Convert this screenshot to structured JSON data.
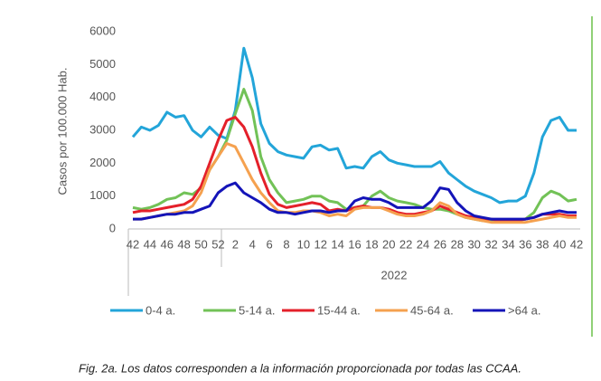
{
  "chart_data": {
    "type": "line",
    "y_label": "Casos por 100.000 Hab.",
    "x_group_label": "2022",
    "caption": "Fig. 2a. Los datos corresponden a la información proporcionada por todas las CCAA.",
    "categories": [
      "42",
      null,
      "44",
      null,
      "46",
      null,
      "48",
      null,
      "50",
      null,
      "52",
      null,
      "2",
      null,
      "4",
      null,
      "6",
      null,
      "8",
      null,
      "10",
      null,
      "12",
      null,
      "14",
      null,
      "16",
      null,
      "18",
      null,
      "20",
      null,
      "22",
      null,
      "24",
      null,
      "26",
      null,
      "28",
      null,
      "30",
      null,
      "32",
      null,
      "34",
      null,
      "36",
      null,
      "38",
      null,
      "40",
      null,
      "42"
    ],
    "ylim": [
      0,
      6000
    ],
    "yticks": [
      0,
      1000,
      2000,
      3000,
      4000,
      5000,
      6000
    ],
    "grid": false,
    "legend": "bottom",
    "series": [
      {
        "name": "0-4 a.",
        "color": "#23a5d9",
        "values": [
          2800,
          3100,
          3000,
          3150,
          3550,
          3400,
          3450,
          3000,
          2800,
          3100,
          2850,
          2750,
          3600,
          5500,
          4600,
          3200,
          2600,
          2350,
          2250,
          2200,
          2150,
          2500,
          2550,
          2400,
          2450,
          1850,
          1900,
          1850,
          2200,
          2350,
          2100,
          2000,
          1950,
          1900,
          1900,
          1900,
          2050,
          1700,
          1500,
          1300,
          1150,
          1050,
          950,
          800,
          850,
          850,
          1000,
          1700,
          2800,
          3300,
          3400,
          3000,
          3000
        ]
      },
      {
        "name": "5-14 a.",
        "color": "#72c257",
        "values": [
          650,
          600,
          650,
          750,
          900,
          950,
          1100,
          1050,
          1250,
          1800,
          2200,
          2700,
          3500,
          4250,
          3600,
          2200,
          1500,
          1100,
          800,
          850,
          900,
          1000,
          1000,
          850,
          800,
          600,
          650,
          700,
          1000,
          1150,
          950,
          850,
          800,
          750,
          650,
          600,
          600,
          550,
          450,
          350,
          300,
          250,
          250,
          250,
          250,
          250,
          300,
          500,
          950,
          1150,
          1050,
          850,
          900
        ]
      },
      {
        "name": "15-44 a.",
        "color": "#e4202a",
        "values": [
          500,
          550,
          550,
          600,
          650,
          700,
          750,
          900,
          1300,
          2000,
          2700,
          3300,
          3400,
          3100,
          2500,
          1700,
          1050,
          750,
          650,
          700,
          750,
          800,
          750,
          550,
          600,
          550,
          650,
          700,
          650,
          650,
          600,
          500,
          450,
          450,
          500,
          550,
          700,
          600,
          500,
          400,
          350,
          300,
          300,
          250,
          250,
          250,
          300,
          350,
          450,
          450,
          450,
          400,
          400
        ]
      },
      {
        "name": "45-64 a.",
        "color": "#f5a14f",
        "values": [
          300,
          300,
          350,
          400,
          450,
          500,
          550,
          700,
          1100,
          1800,
          2200,
          2600,
          2500,
          2000,
          1500,
          1100,
          800,
          550,
          500,
          500,
          550,
          550,
          500,
          400,
          450,
          400,
          600,
          650,
          650,
          650,
          550,
          450,
          400,
          400,
          450,
          550,
          800,
          700,
          450,
          350,
          300,
          250,
          200,
          200,
          200,
          200,
          200,
          250,
          300,
          350,
          400,
          350,
          350
        ]
      },
      {
        "name": ">64 a.",
        "color": "#1414b8",
        "values": [
          300,
          300,
          350,
          400,
          450,
          450,
          500,
          500,
          600,
          700,
          1100,
          1300,
          1400,
          1100,
          950,
          800,
          600,
          500,
          500,
          450,
          500,
          550,
          550,
          500,
          550,
          550,
          850,
          950,
          900,
          900,
          800,
          650,
          650,
          650,
          650,
          850,
          1250,
          1200,
          800,
          550,
          400,
          350,
          300,
          300,
          300,
          300,
          300,
          350,
          450,
          500,
          550,
          500,
          500
        ]
      }
    ]
  }
}
